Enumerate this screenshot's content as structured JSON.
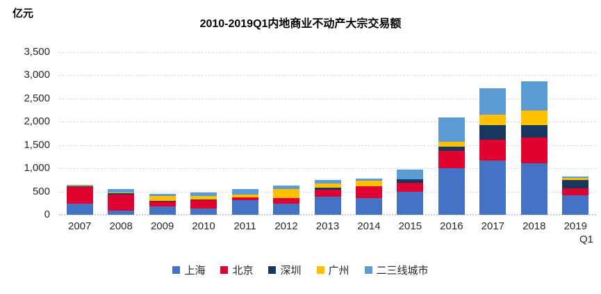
{
  "chart_data": {
    "type": "bar",
    "stacked": true,
    "title": "2010-2019Q1内地商业不动产大宗交易额",
    "unit": "亿元",
    "grid": true,
    "legend_position": "bottom",
    "ylim": [
      0,
      3500
    ],
    "y_tick_step": 500,
    "y_ticks": [
      "0",
      "500",
      "1,000",
      "1,500",
      "2,000",
      "2,500",
      "3,000",
      "3,500"
    ],
    "categories": [
      {
        "label": "2007"
      },
      {
        "label": "2008"
      },
      {
        "label": "2009"
      },
      {
        "label": "2010"
      },
      {
        "label": "2011"
      },
      {
        "label": "2012"
      },
      {
        "label": "2013"
      },
      {
        "label": "2014"
      },
      {
        "label": "2015"
      },
      {
        "label": "2016"
      },
      {
        "label": "2017"
      },
      {
        "label": "2018"
      },
      {
        "label": "2019",
        "sublabel": "Q1"
      }
    ],
    "series": [
      {
        "name": "上海",
        "color": "#4472C4",
        "values": [
          240,
          90,
          175,
          140,
          320,
          235,
          395,
          355,
          500,
          1000,
          1165,
          1110,
          425
        ]
      },
      {
        "name": "北京",
        "color": "#E0022F",
        "values": [
          365,
          340,
          115,
          180,
          50,
          125,
          140,
          255,
          190,
          380,
          455,
          550,
          150
        ]
      },
      {
        "name": "深圳",
        "color": "#17375E",
        "values": [
          10,
          30,
          5,
          5,
          5,
          5,
          45,
          10,
          70,
          90,
          310,
          275,
          170
        ]
      },
      {
        "name": "广州",
        "color": "#FFC000",
        "values": [
          15,
          25,
          105,
          85,
          65,
          195,
          100,
          110,
          0,
          100,
          230,
          305,
          45
        ]
      },
      {
        "name": "二三线城市",
        "color": "#5B9BD5",
        "values": [
          15,
          65,
          55,
          75,
          110,
          75,
          75,
          50,
          210,
          530,
          565,
          625,
          30
        ]
      }
    ]
  }
}
